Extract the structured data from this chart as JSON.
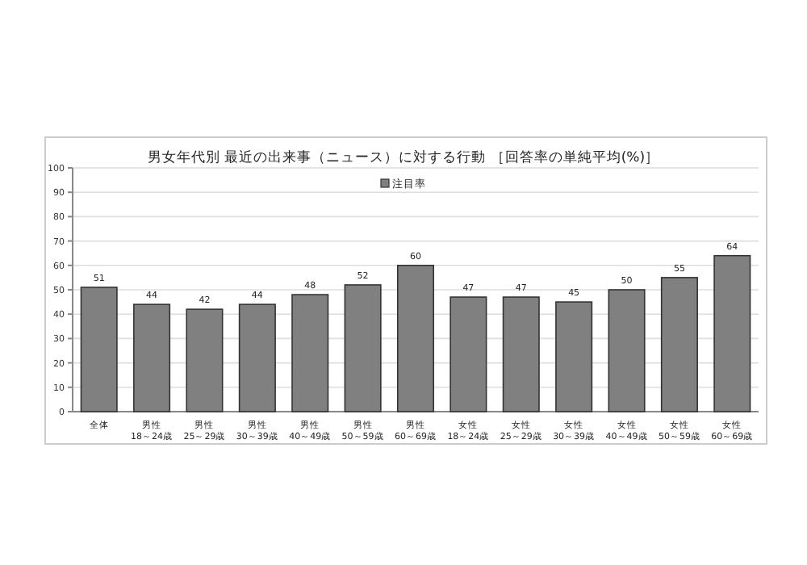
{
  "chart_data": {
    "type": "bar",
    "title": "男女年代別 最近の出来事（ニュース）に対する行動 ［回答率の単純平均(%)］",
    "categories": [
      "全体",
      "男性 18～24歳",
      "男性 25～29歳",
      "男性 30～39歳",
      "男性 40～49歳",
      "男性 50～59歳",
      "男性 60～69歳",
      "女性 18～24歳",
      "女性 25～29歳",
      "女性 30～39歳",
      "女性 40～49歳",
      "女性 50～59歳",
      "女性 60～69歳"
    ],
    "series": [
      {
        "name": "注目率",
        "color": "#808080",
        "values": [
          51,
          44,
          42,
          44,
          48,
          52,
          60,
          47,
          47,
          45,
          50,
          55,
          64
        ]
      }
    ],
    "ylim": [
      0,
      100
    ],
    "yticks": [
      0,
      10,
      20,
      30,
      40,
      50,
      60,
      70,
      80,
      90,
      100
    ],
    "grid": "y",
    "legend": "top",
    "data_labels": true
  }
}
